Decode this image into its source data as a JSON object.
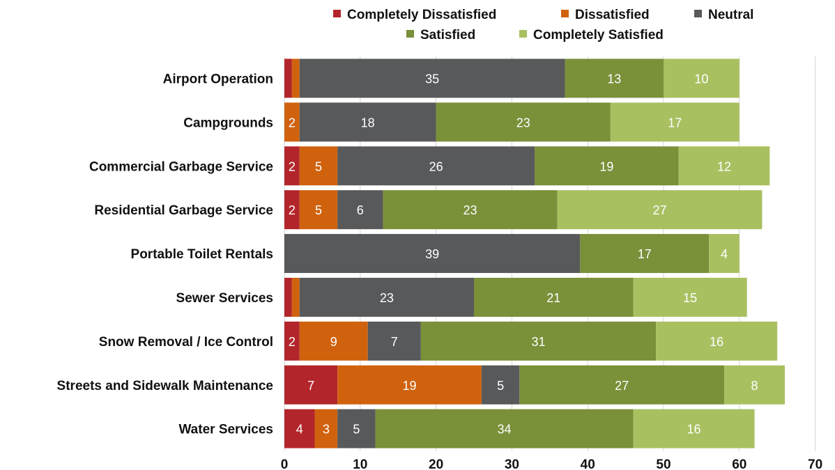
{
  "chart_data": {
    "type": "bar",
    "orientation": "horizontal",
    "stacked": true,
    "categories": [
      "Airport Operation",
      "Campgrounds",
      "Commercial Garbage Service",
      "Residential Garbage Service",
      "Portable Toilet Rentals",
      "Sewer Services",
      "Snow Removal / Ice Control",
      "Streets and Sidewalk Maintenance",
      "Water Services"
    ],
    "series": [
      {
        "name": "Completely Dissatisfied",
        "color": "#b2262b",
        "values": [
          1,
          0,
          2,
          2,
          0,
          1,
          2,
          7,
          4
        ]
      },
      {
        "name": "Dissatisfied",
        "color": "#d0620e",
        "values": [
          1,
          2,
          5,
          5,
          0,
          1,
          9,
          19,
          3
        ]
      },
      {
        "name": "Neutral",
        "color": "#58595b",
        "values": [
          35,
          18,
          26,
          6,
          39,
          23,
          7,
          5,
          5
        ]
      },
      {
        "name": "Satisfied",
        "color": "#7a9039",
        "values": [
          13,
          23,
          19,
          23,
          17,
          21,
          31,
          27,
          34
        ]
      },
      {
        "name": "Completely Satisfied",
        "color": "#a9c061",
        "values": [
          10,
          17,
          12,
          27,
          4,
          15,
          16,
          8,
          16
        ]
      }
    ],
    "xlim": [
      0,
      70
    ],
    "xticks": [
      0,
      10,
      20,
      30,
      40,
      50,
      60,
      70
    ],
    "legend_position": "top",
    "grid": true,
    "data_labels": {
      "Completely Dissatisfied": [
        "",
        "",
        "2",
        "2",
        "",
        "",
        "2",
        "7",
        "4"
      ],
      "Dissatisfied": [
        "",
        "2",
        "5",
        "5",
        "",
        "",
        "9",
        "19",
        "3"
      ],
      "Neutral": [
        "35",
        "18",
        "26",
        "6",
        "39",
        "23",
        "7",
        "5",
        "5"
      ],
      "Satisfied": [
        "13",
        "23",
        "19",
        "23",
        "17",
        "21",
        "31",
        "27",
        "34"
      ],
      "Completely Satisfied": [
        "10",
        "17",
        "12",
        "27",
        "4",
        "15",
        "16",
        "8",
        "16"
      ]
    }
  }
}
